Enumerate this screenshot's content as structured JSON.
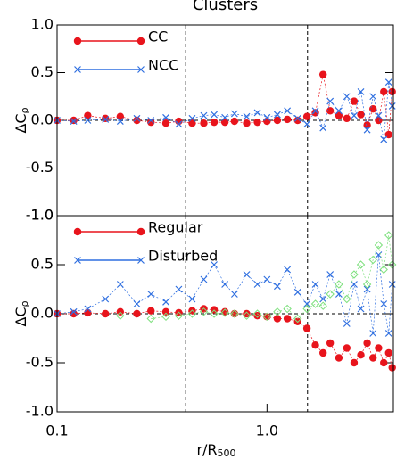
{
  "chart_data": [
    {
      "type": "line",
      "title": "Clusters",
      "ylabel": "ΔC",
      "ylabel_sub": "ρ",
      "xlim": [
        0.1,
        4.0
      ],
      "xscale": "log",
      "ylim": [
        -1.0,
        1.0
      ],
      "yticks": [
        {
          "value": -1.0,
          "label": "-1.0"
        },
        {
          "value": -0.5,
          "label": "-0.5"
        },
        {
          "value": 0,
          "label": "0.0"
        },
        {
          "value": 0.5,
          "label": "0.5"
        },
        {
          "value": 1.0,
          "label": "1.0"
        }
      ],
      "vlines": [
        0.41,
        1.56
      ],
      "hline": 0,
      "legend": "upper left",
      "x": [
        0.1,
        0.12,
        0.14,
        0.17,
        0.2,
        0.24,
        0.28,
        0.33,
        0.38,
        0.44,
        0.5,
        0.56,
        0.63,
        0.7,
        0.8,
        0.9,
        1.0,
        1.12,
        1.25,
        1.4,
        1.55,
        1.7,
        1.85,
        2.0,
        2.2,
        2.4,
        2.6,
        2.8,
        3.0,
        3.2,
        3.4,
        3.6,
        3.8,
        3.95
      ],
      "series": [
        {
          "name": "CC",
          "color": "#e8141c",
          "marker": "circle",
          "values": [
            0.0,
            0.0,
            0.05,
            0.02,
            0.04,
            0.0,
            -0.02,
            -0.03,
            -0.01,
            -0.03,
            -0.03,
            -0.02,
            -0.02,
            -0.01,
            -0.03,
            -0.02,
            -0.01,
            0.0,
            0.01,
            0.0,
            0.04,
            0.08,
            0.48,
            0.1,
            0.05,
            0.02,
            0.2,
            0.06,
            -0.05,
            0.12,
            0.0,
            0.3,
            -0.15,
            0.3
          ]
        },
        {
          "name": "NCC",
          "color": "#2f6fe0",
          "marker": "cross",
          "values": [
            0.0,
            -0.01,
            0.0,
            0.01,
            -0.01,
            0.02,
            0.0,
            0.03,
            -0.04,
            0.02,
            0.05,
            0.06,
            0.03,
            0.07,
            0.04,
            0.08,
            0.03,
            0.06,
            0.1,
            0.02,
            -0.04,
            0.1,
            -0.08,
            0.2,
            0.1,
            0.25,
            0.05,
            0.3,
            -0.1,
            0.25,
            0.05,
            -0.2,
            0.4,
            0.15
          ]
        }
      ]
    },
    {
      "type": "line",
      "ylabel": "ΔC",
      "ylabel_sub": "ρ",
      "xlabel": "r/R",
      "xlabel_sub": "500",
      "xlim": [
        0.1,
        4.0
      ],
      "xscale": "log",
      "xticks": [
        0.1,
        {
          "value": 1,
          "label": "1.0"
        }
      ],
      "ylim": [
        -1.0,
        1.0
      ],
      "yticks": [
        {
          "value": -1.0,
          "label": "-1.0"
        },
        {
          "value": -0.5,
          "label": "-0.5"
        },
        {
          "value": 0,
          "label": "0.0"
        },
        {
          "value": 0.5,
          "label": "0.5"
        },
        {
          "value": 1.0,
          "label": "1.0"
        }
      ],
      "vlines": [
        0.41,
        1.56
      ],
      "hline": 0,
      "legend": "upper left",
      "x": [
        0.1,
        0.12,
        0.14,
        0.17,
        0.2,
        0.24,
        0.28,
        0.33,
        0.38,
        0.44,
        0.5,
        0.56,
        0.63,
        0.7,
        0.8,
        0.9,
        1.0,
        1.12,
        1.25,
        1.4,
        1.55,
        1.7,
        1.85,
        2.0,
        2.2,
        2.4,
        2.6,
        2.8,
        3.0,
        3.2,
        3.4,
        3.6,
        3.8,
        3.95
      ],
      "series": [
        {
          "name": "Regular",
          "color": "#e8141c",
          "marker": "circle",
          "values": [
            0.0,
            0.0,
            0.01,
            0.0,
            0.02,
            0.0,
            0.03,
            0.02,
            0.01,
            0.03,
            0.05,
            0.04,
            0.02,
            0.0,
            0.0,
            -0.02,
            -0.03,
            -0.05,
            -0.05,
            -0.08,
            -0.15,
            -0.32,
            -0.4,
            -0.3,
            -0.45,
            -0.35,
            -0.5,
            -0.42,
            -0.3,
            -0.45,
            -0.35,
            -0.5,
            -0.4,
            -0.55
          ]
        },
        {
          "name": "Disturbed",
          "color": "#2f6fe0",
          "marker": "cross",
          "values": [
            0.0,
            0.02,
            0.05,
            0.15,
            0.3,
            0.1,
            0.2,
            0.12,
            0.25,
            0.15,
            0.35,
            0.5,
            0.3,
            0.2,
            0.4,
            0.3,
            0.35,
            0.28,
            0.45,
            0.22,
            0.1,
            0.3,
            0.15,
            0.4,
            0.2,
            -0.1,
            0.3,
            0.05,
            0.25,
            -0.2,
            0.6,
            0.1,
            -0.2,
            0.3
          ]
        },
        {
          "color": "#7ee07e",
          "marker": "diamond",
          "values": [
            null,
            null,
            null,
            null,
            -0.02,
            null,
            -0.05,
            -0.03,
            -0.02,
            0.0,
            0.02,
            0.0,
            0.01,
            0.0,
            -0.02,
            0.0,
            -0.03,
            0.02,
            0.05,
            -0.05,
            0.05,
            0.1,
            0.08,
            0.2,
            0.3,
            0.15,
            0.4,
            0.5,
            0.3,
            0.55,
            0.7,
            0.45,
            0.8,
            0.5
          ]
        }
      ]
    }
  ]
}
